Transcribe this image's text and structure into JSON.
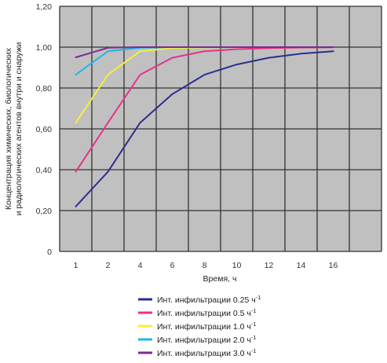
{
  "chart_data": {
    "type": "line",
    "xlabel": "Время, ч",
    "ylabel_line1": "Концентрация химических, биологических",
    "ylabel_line2": "и радиологических агентов внутри и снаружи",
    "x_tick_labels": [
      "1",
      "2",
      "4",
      "6",
      "8",
      "10",
      "12",
      "14",
      "16"
    ],
    "y_tick_labels": [
      "0",
      "0,20",
      "0,40",
      "0,60",
      "0,80",
      "1,00",
      "1,20"
    ],
    "ylim": [
      0,
      1.2
    ],
    "grid": true,
    "plot_background": "#c0c0c0",
    "grid_color": "#333333",
    "legend_position": "bottom",
    "series": [
      {
        "name": "Инт. инфильтрации 0.25 ч",
        "sup": "-1",
        "color": "#2b2e8f",
        "values": [
          0.22,
          0.39,
          0.63,
          0.77,
          0.865,
          0.915,
          0.948,
          0.968,
          0.98
        ]
      },
      {
        "name": "Инт. инфильтрации 0.5 ч",
        "sup": "-1",
        "color": "#e6338a",
        "values": [
          0.39,
          0.63,
          0.865,
          0.948,
          0.98,
          0.99,
          0.995,
          0.998,
          0.999
        ]
      },
      {
        "name": "Инт. инфильтрации 1.0 ч",
        "sup": "-1",
        "color": "#f4ef3a",
        "values": [
          0.63,
          0.865,
          0.98,
          0.995,
          0.999,
          1.0,
          1.0,
          1.0,
          1.0
        ]
      },
      {
        "name": "Инт. инфильтрации 2.0 ч",
        "sup": "-1",
        "color": "#1fb6e8",
        "values": [
          0.865,
          0.98,
          0.997,
          1.0,
          1.0,
          1.0,
          1.0,
          1.0,
          1.0
        ]
      },
      {
        "name": "Инт. инфильтрации 3.0 ч",
        "sup": "-1",
        "color": "#7b2d8e",
        "values": [
          0.95,
          0.997,
          1.0,
          1.0,
          1.0,
          1.0,
          1.0,
          1.0,
          1.0
        ]
      }
    ]
  }
}
